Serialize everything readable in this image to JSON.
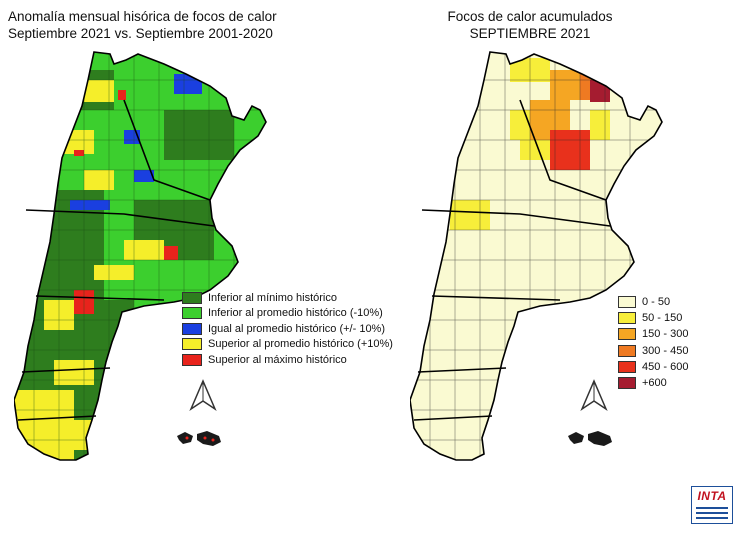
{
  "left_panel": {
    "title_line1": "Anomalía mensual hisórica de focos de calor",
    "title_line2": "Septiembre 2021 vs. Septiembre 2001-2020",
    "legend": [
      {
        "label": "Inferior al mínimo histórico",
        "color": "#2e7d1e"
      },
      {
        "label": "Inferior al promedio histórico (-10%)",
        "color": "#3ccf2e"
      },
      {
        "label": "Igual al promedio histórico (+/- 10%)",
        "color": "#1a3fe0"
      },
      {
        "label": "Superior al promedio histórico (+10%)",
        "color": "#f5ee2a"
      },
      {
        "label": "Superior al máximo histórico",
        "color": "#e8231c"
      }
    ]
  },
  "right_panel": {
    "title_line1": "Focos de calor acumulados",
    "title_line2": "SEPTIEMBRE 2021",
    "legend": [
      {
        "label": "0 - 50",
        "color": "#fafad2"
      },
      {
        "label": "50 - 150",
        "color": "#f7ee3a"
      },
      {
        "label": "150 - 300",
        "color": "#f5a623"
      },
      {
        "label": "300 - 450",
        "color": "#ef7a22"
      },
      {
        "label": "450 - 600",
        "color": "#e8311c"
      },
      {
        "label": "+600",
        "color": "#a51c30"
      }
    ]
  },
  "logo": {
    "text": "INTA"
  }
}
